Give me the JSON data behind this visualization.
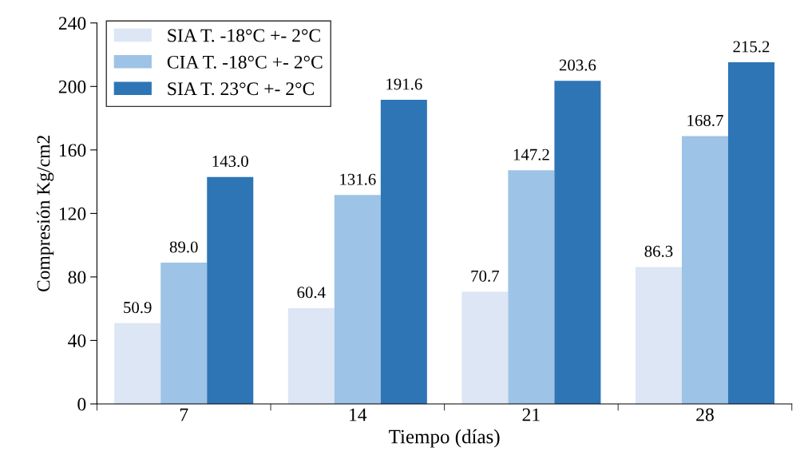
{
  "chart_data": {
    "type": "bar",
    "xlabel": "Tiempo (días)",
    "ylabel": "Compresión Kg/cm2",
    "categories": [
      "7",
      "14",
      "21",
      "28"
    ],
    "series": [
      {
        "name": "SIA T. -18°C +- 2°C",
        "color": "#dce6f4",
        "values": [
          50.9,
          60.4,
          70.7,
          86.3
        ],
        "value_labels": [
          "50.9",
          "60.4",
          "70.7",
          "86.3"
        ]
      },
      {
        "name": "CIA T. -18°C +- 2°C",
        "color": "#9dc3e6",
        "values": [
          89.0,
          131.6,
          147.2,
          168.7
        ],
        "value_labels": [
          "89.0",
          "131.6",
          "147.2",
          "168.7"
        ]
      },
      {
        "name": "SIA T. 23°C +- 2°C",
        "color": "#2e75b6",
        "values": [
          143.0,
          191.6,
          203.6,
          215.2
        ],
        "value_labels": [
          "143.0",
          "191.6",
          "203.6",
          "215.2"
        ]
      }
    ],
    "ylim": [
      0,
      240
    ],
    "yticks": [
      0,
      40,
      80,
      120,
      160,
      200,
      240
    ],
    "grid": false,
    "legend": "top left"
  }
}
